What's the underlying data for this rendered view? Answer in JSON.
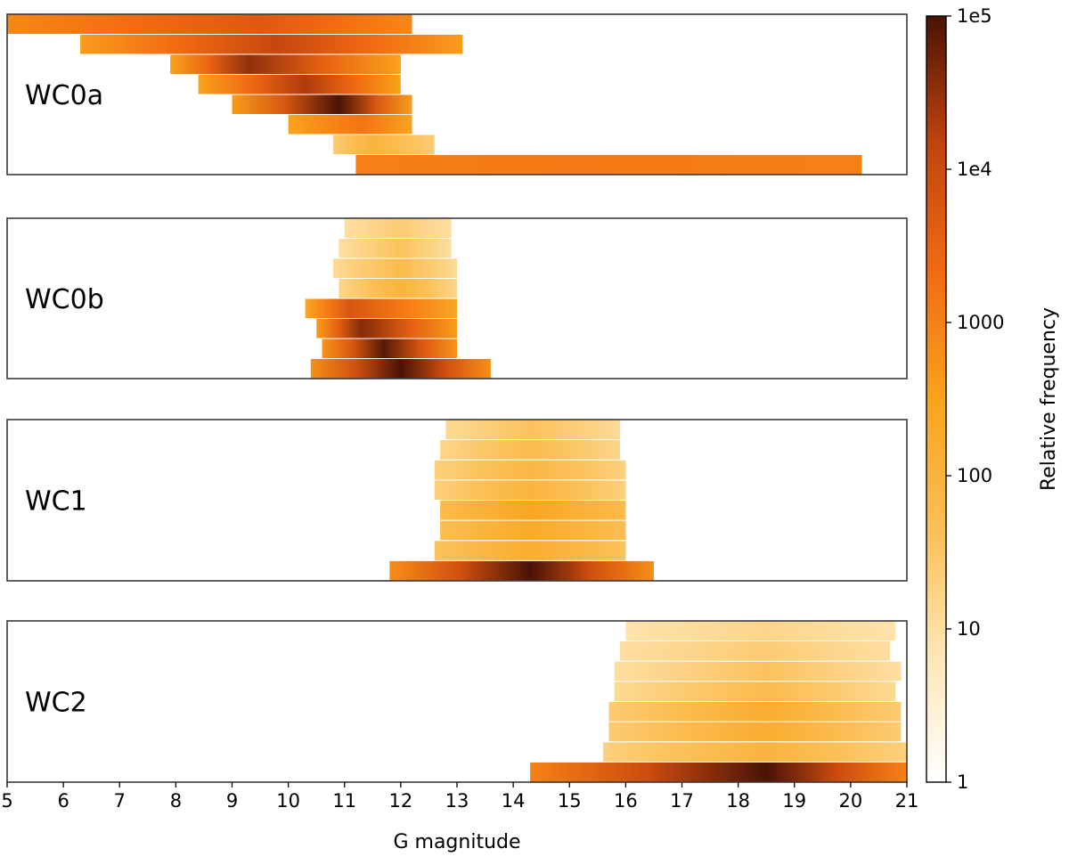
{
  "chart_data": {
    "type": "heatmap",
    "xlabel": "G magnitude",
    "xlim": [
      5,
      21
    ],
    "x_ticks": [
      "5",
      "6",
      "7",
      "8",
      "9",
      "10",
      "11",
      "12",
      "13",
      "14",
      "15",
      "16",
      "17",
      "18",
      "19",
      "20",
      "21"
    ],
    "panels": [
      {
        "label": "WC0a",
        "rows": [
          {
            "x": [
              5.0,
              12.2
            ],
            "peak": 9.5,
            "peak_level": 3.7,
            "edge_level": 2.9
          },
          {
            "x": [
              6.3,
              13.1
            ],
            "peak": 9.8,
            "peak_level": 4.1,
            "edge_level": 2.6
          },
          {
            "x": [
              7.9,
              12.0
            ],
            "peak": 9.3,
            "peak_level": 4.5,
            "edge_level": 2.5
          },
          {
            "x": [
              8.4,
              12.0
            ],
            "peak": 10.3,
            "peak_level": 4.3,
            "edge_level": 2.5
          },
          {
            "x": [
              9.0,
              12.2
            ],
            "peak": 10.9,
            "peak_level": 5.0,
            "edge_level": 2.6
          },
          {
            "x": [
              10.0,
              12.2
            ],
            "peak": 11.3,
            "peak_level": 3.2,
            "edge_level": 2.5
          },
          {
            "x": [
              10.8,
              12.6
            ],
            "peak": 11.5,
            "peak_level": 2.0,
            "edge_level": 1.4
          },
          {
            "x": [
              11.2,
              20.2
            ],
            "peak": 15.0,
            "peak_level": 3.1,
            "edge_level": 3.0
          }
        ]
      },
      {
        "label": "WC0b",
        "rows": [
          {
            "x": [
              11.0,
              12.9
            ],
            "peak": 12.0,
            "peak_level": 1.4,
            "edge_level": 1.0
          },
          {
            "x": [
              10.9,
              12.9
            ],
            "peak": 12.0,
            "peak_level": 1.6,
            "edge_level": 1.0
          },
          {
            "x": [
              10.8,
              13.0
            ],
            "peak": 12.0,
            "peak_level": 1.8,
            "edge_level": 1.1
          },
          {
            "x": [
              10.9,
              13.0
            ],
            "peak": 12.0,
            "peak_level": 2.0,
            "edge_level": 1.2
          },
          {
            "x": [
              10.3,
              13.0
            ],
            "peak": 11.1,
            "peak_level": 3.8,
            "edge_level": 2.4
          },
          {
            "x": [
              10.5,
              13.0
            ],
            "peak": 11.3,
            "peak_level": 4.6,
            "edge_level": 2.6
          },
          {
            "x": [
              10.6,
              13.0
            ],
            "peak": 11.7,
            "peak_level": 4.9,
            "edge_level": 2.7
          },
          {
            "x": [
              10.4,
              13.6
            ],
            "peak": 12.0,
            "peak_level": 5.0,
            "edge_level": 2.8
          }
        ]
      },
      {
        "label": "WC1",
        "rows": [
          {
            "x": [
              12.8,
              15.9
            ],
            "peak": 14.3,
            "peak_level": 1.6,
            "edge_level": 1.1
          },
          {
            "x": [
              12.7,
              15.9
            ],
            "peak": 14.3,
            "peak_level": 1.8,
            "edge_level": 1.2
          },
          {
            "x": [
              12.6,
              16.0
            ],
            "peak": 14.3,
            "peak_level": 1.9,
            "edge_level": 1.3
          },
          {
            "x": [
              12.6,
              16.0
            ],
            "peak": 14.3,
            "peak_level": 2.0,
            "edge_level": 1.3
          },
          {
            "x": [
              12.7,
              16.0
            ],
            "peak": 14.3,
            "peak_level": 2.4,
            "edge_level": 1.8
          },
          {
            "x": [
              12.7,
              16.0
            ],
            "peak": 14.3,
            "peak_level": 2.3,
            "edge_level": 1.7
          },
          {
            "x": [
              12.6,
              16.0
            ],
            "peak": 14.3,
            "peak_level": 2.2,
            "edge_level": 1.6
          },
          {
            "x": [
              11.8,
              16.5
            ],
            "peak": 14.3,
            "peak_level": 5.0,
            "edge_level": 2.8
          }
        ]
      },
      {
        "label": "WC2",
        "rows": [
          {
            "x": [
              16.0,
              20.8
            ],
            "peak": 18.5,
            "peak_level": 1.2,
            "edge_level": 0.9
          },
          {
            "x": [
              15.9,
              20.7
            ],
            "peak": 18.5,
            "peak_level": 1.4,
            "edge_level": 1.0
          },
          {
            "x": [
              15.8,
              20.9
            ],
            "peak": 18.5,
            "peak_level": 1.6,
            "edge_level": 1.0
          },
          {
            "x": [
              15.8,
              20.8
            ],
            "peak": 18.5,
            "peak_level": 1.8,
            "edge_level": 1.1
          },
          {
            "x": [
              15.7,
              20.9
            ],
            "peak": 18.5,
            "peak_level": 2.2,
            "edge_level": 1.4
          },
          {
            "x": [
              15.7,
              20.9
            ],
            "peak": 18.5,
            "peak_level": 2.2,
            "edge_level": 1.4
          },
          {
            "x": [
              15.6,
              21.0
            ],
            "peak": 18.5,
            "peak_level": 2.0,
            "edge_level": 1.3
          },
          {
            "x": [
              14.3,
              21.0
            ],
            "peak": 18.5,
            "peak_level": 5.0,
            "edge_level": 3.0
          }
        ]
      }
    ],
    "colorbar": {
      "label": "Relative frequency",
      "scale": "log",
      "range": [
        1,
        100000
      ],
      "tick_values": [
        1,
        10,
        100,
        1000,
        10000,
        100000
      ],
      "tick_labels": [
        "1",
        "10",
        "100",
        "1000",
        "1e4",
        "1e5"
      ],
      "colors": [
        "#ffffff",
        "#fde6b4",
        "#fbbf54",
        "#f9a31c",
        "#f36a12",
        "#c1440e",
        "#4a1306"
      ]
    }
  }
}
